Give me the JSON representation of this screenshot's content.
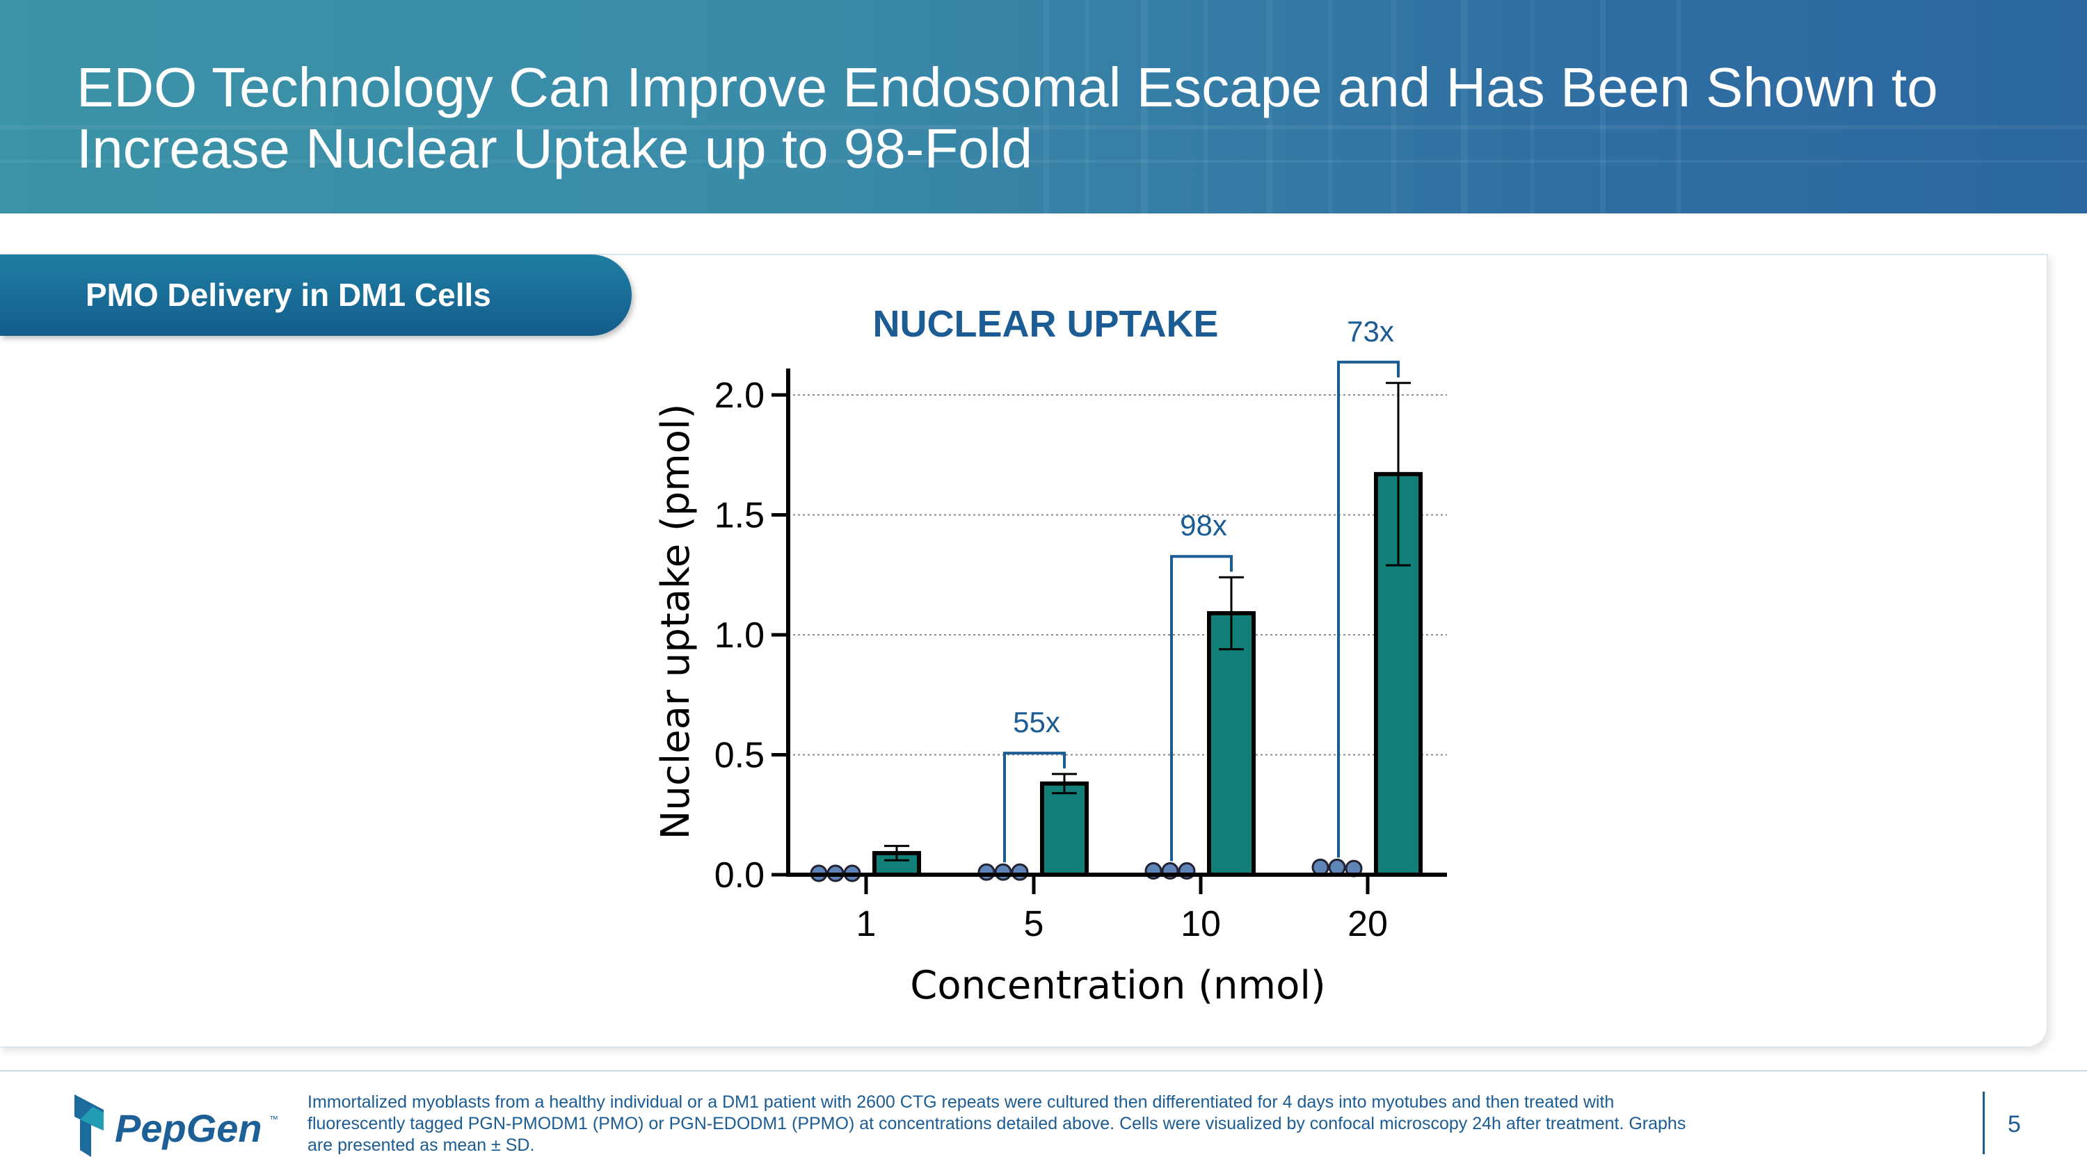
{
  "slide": {
    "title": "EDO Technology Can Improve Endosomal Escape and Has Been Shown to Increase Nuclear Uptake up to 98-Fold",
    "panel_label": "PMO Delivery in DM1 Cells",
    "footnote": "Immortalized myoblasts from a healthy individual or a DM1 patient with 2600 CTG repeats were cultured then differentiated for 4 days into myotubes and then treated with fluorescently tagged PGN-PMODM1 (PMO) or PGN-EDODM1 (PPMO) at concentrations detailed above. Cells were visualized by confocal microscopy 24h after treatment. Graphs are presented as mean ± SD.",
    "page_number": "5",
    "logo_text": "PepGen",
    "logo_mark": "™"
  },
  "colors": {
    "header_start": "#3b93a7",
    "header_end": "#2c67a0",
    "pill": "#135c8b",
    "bar_fill": "#128078",
    "dot_fill": "#5f85b8",
    "accent_text": "#1a5c93"
  },
  "chart_data": {
    "type": "bar",
    "title": "NUCLEAR UPTAKE",
    "xlabel": "Concentration (nmol)",
    "ylabel": "Nuclear uptake (pmol)",
    "categories": [
      "1",
      "5",
      "10",
      "20"
    ],
    "ylim": [
      0,
      2.0
    ],
    "yticks": [
      "0.0",
      "0.5",
      "1.0",
      "1.5",
      "2.0"
    ],
    "grid": true,
    "series": [
      {
        "values": [
          0.09,
          0.38,
          1.09,
          1.67
        ],
        "error": [
          0.03,
          0.04,
          0.15,
          0.38
        ]
      }
    ],
    "points": [
      [
        0.0,
        0.0,
        0.0
      ],
      [
        0.005,
        0.005,
        0.005
      ],
      [
        0.01,
        0.01,
        0.01
      ],
      [
        0.025,
        0.025,
        0.02
      ]
    ],
    "annotations": [
      {
        "category": "5",
        "label": "55x"
      },
      {
        "category": "10",
        "label": "98x"
      },
      {
        "category": "20",
        "label": "73x"
      }
    ]
  }
}
